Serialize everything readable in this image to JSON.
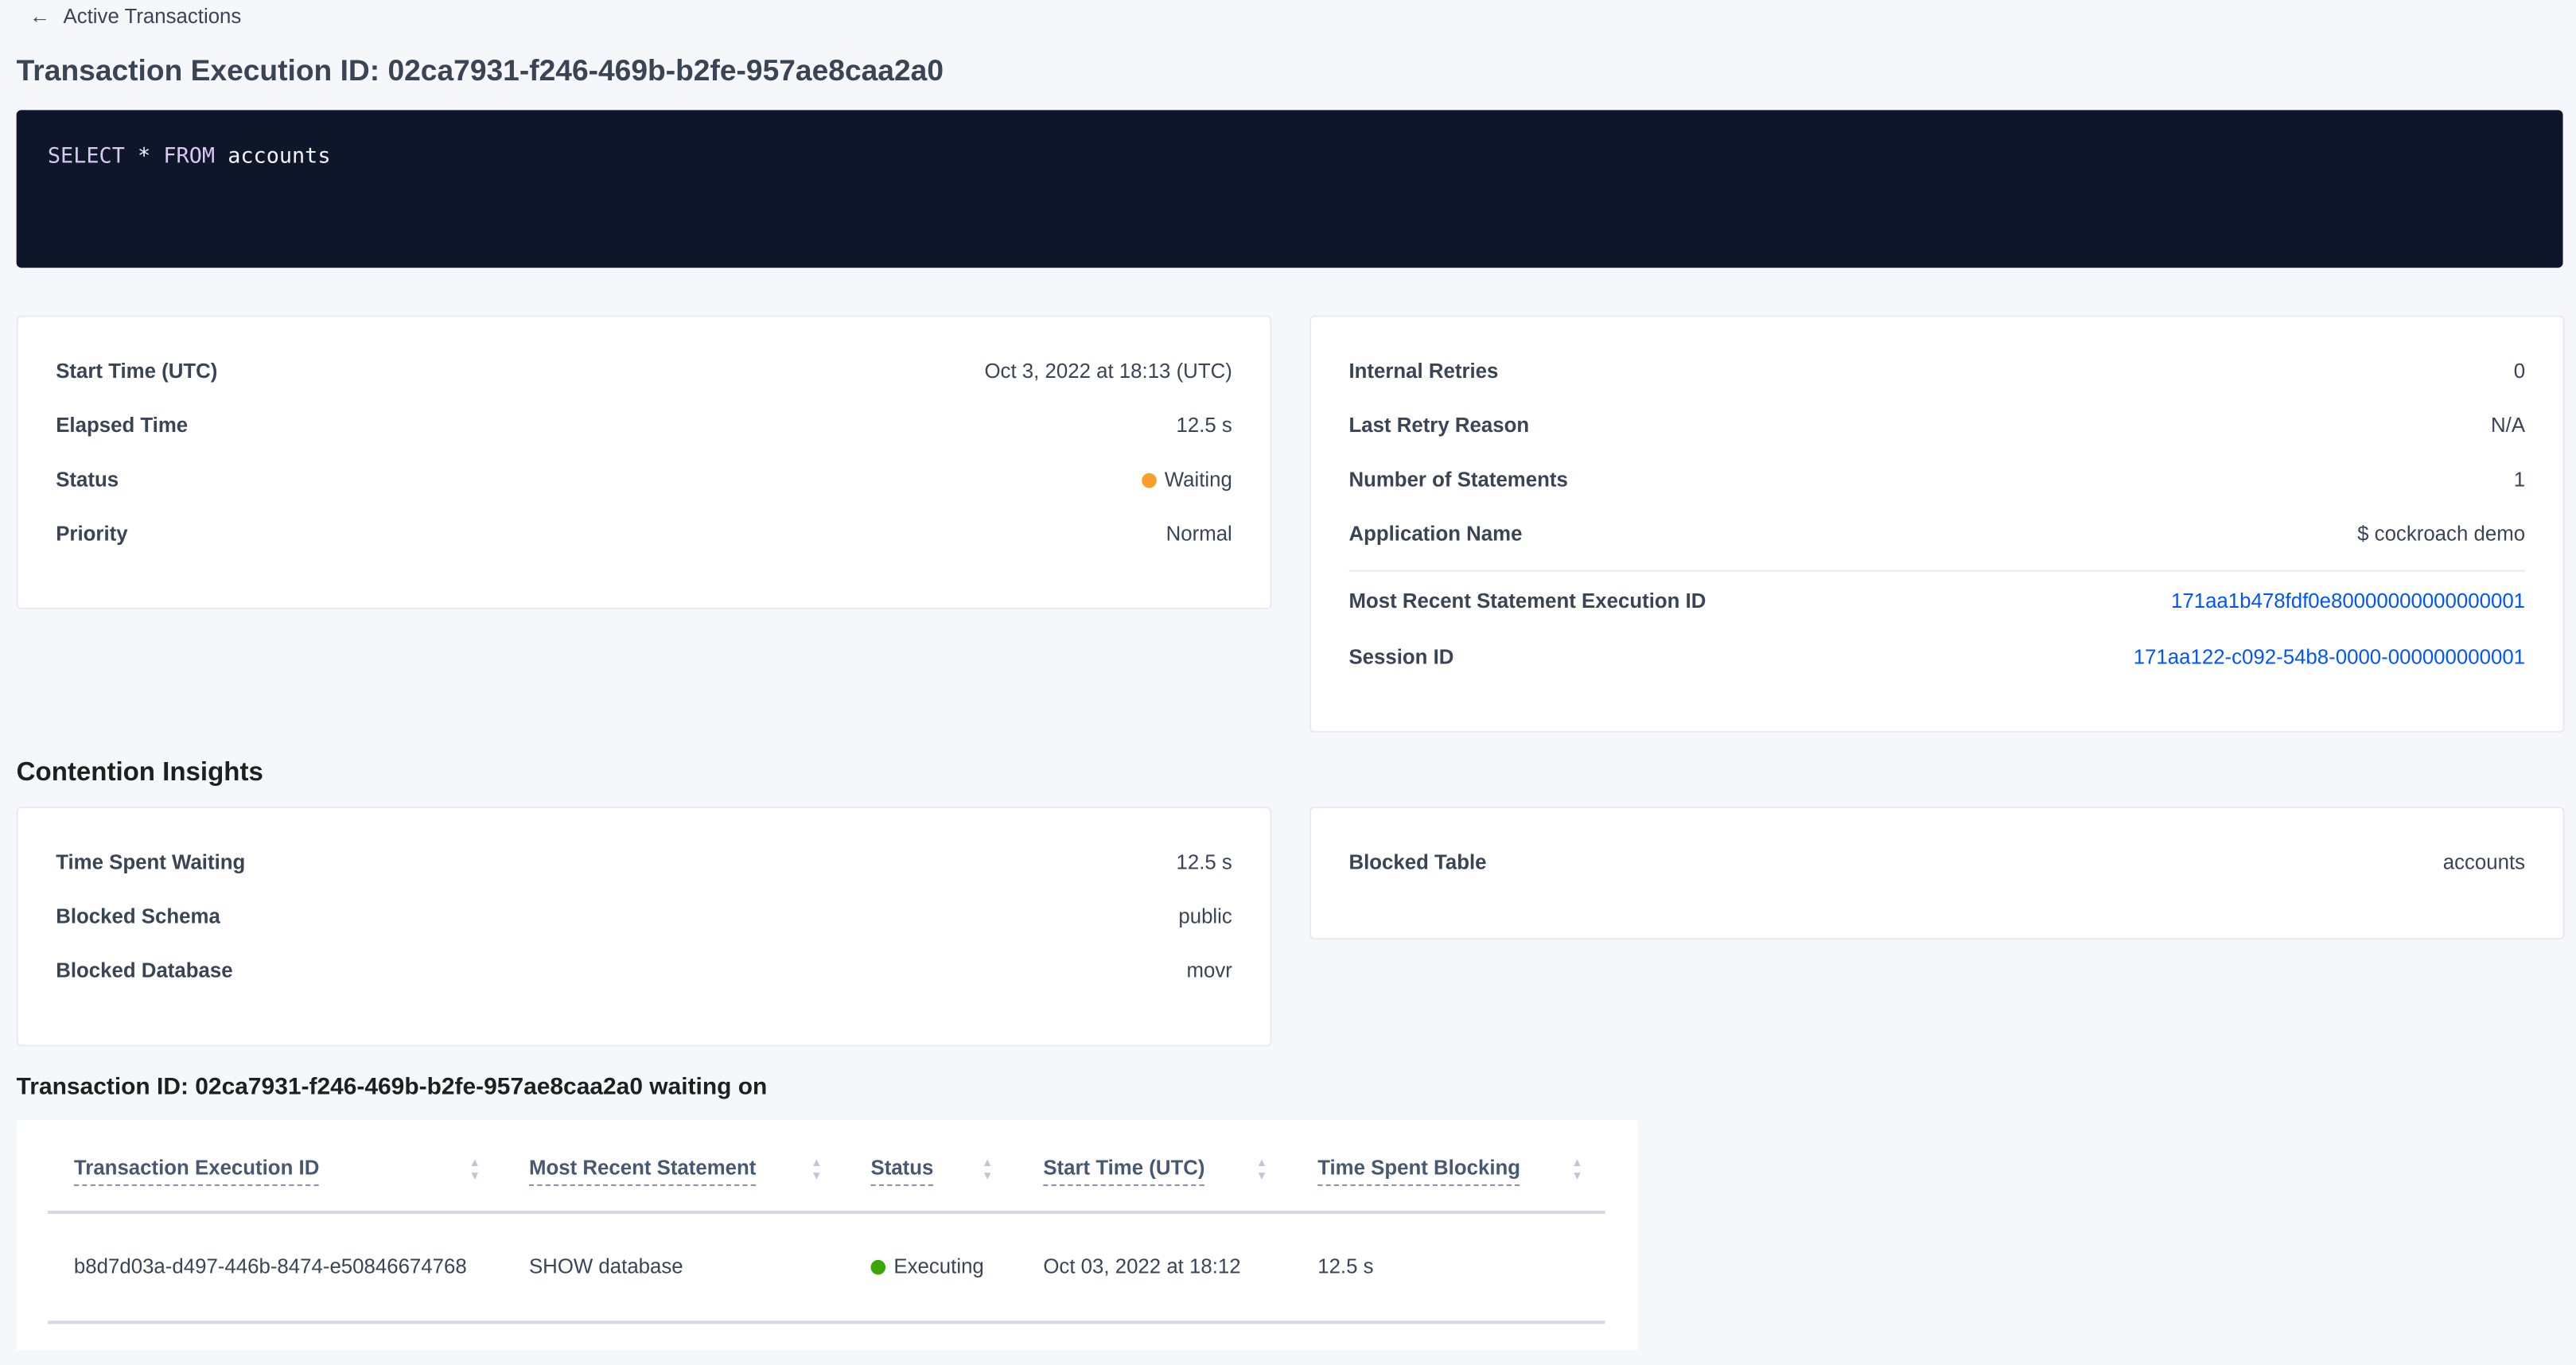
{
  "breadcrumb": {
    "back_label": "Active Transactions",
    "icon": "arrow-left-icon"
  },
  "page_title": "Transaction Execution ID: 02ca7931-f246-469b-b2fe-957ae8caa2a0",
  "sql": {
    "keyword1": "SELECT",
    "star": " * ",
    "keyword2": "FROM",
    "rest": " accounts"
  },
  "summary_left": [
    {
      "label": "Start Time (UTC)",
      "value": "Oct 3, 2022 at 18:13 (UTC)"
    },
    {
      "label": "Elapsed Time",
      "value": "12.5 s"
    },
    {
      "label": "Status",
      "value": "Waiting",
      "status_color": "#f79e2c"
    },
    {
      "label": "Priority",
      "value": "Normal"
    }
  ],
  "summary_right": [
    {
      "label": "Internal Retries",
      "value": "0"
    },
    {
      "label": "Last Retry Reason",
      "value": "N/A"
    },
    {
      "label": "Number of Statements",
      "value": "1"
    },
    {
      "label": "Application Name",
      "value": "$ cockroach demo"
    },
    {
      "label": "Most Recent Statement Execution ID",
      "value": "171aa1b478fdf0e80000000000000001"
    },
    {
      "label": "Session ID",
      "value": "171aa122-c092-54b8-0000-000000000001"
    }
  ],
  "contention": {
    "title": "Contention Insights",
    "left": [
      {
        "label": "Time Spent Waiting",
        "value": "12.5 s"
      },
      {
        "label": "Blocked Schema",
        "value": "public"
      },
      {
        "label": "Blocked Database",
        "value": "movr"
      }
    ],
    "right": [
      {
        "label": "Blocked Table",
        "value": "accounts"
      }
    ]
  },
  "waiting": {
    "title": "Transaction ID: 02ca7931-f246-469b-b2fe-957ae8caa2a0 waiting on",
    "columns": [
      "Transaction Execution ID",
      "Most Recent Statement",
      "Status",
      "Start Time (UTC)",
      "Time Spent Blocking"
    ],
    "rows": [
      {
        "id": "b8d7d03a-d497-446b-8474-e50846674768",
        "statement": "SHOW database",
        "status": "Executing",
        "status_color": "#37a806",
        "start": "Oct 03, 2022 at 18:12",
        "blocking": "12.5 s"
      }
    ]
  },
  "colors": {
    "link": "#0055ff",
    "code_bg": "#0e1629",
    "page_bg": "#f5f7fa"
  }
}
